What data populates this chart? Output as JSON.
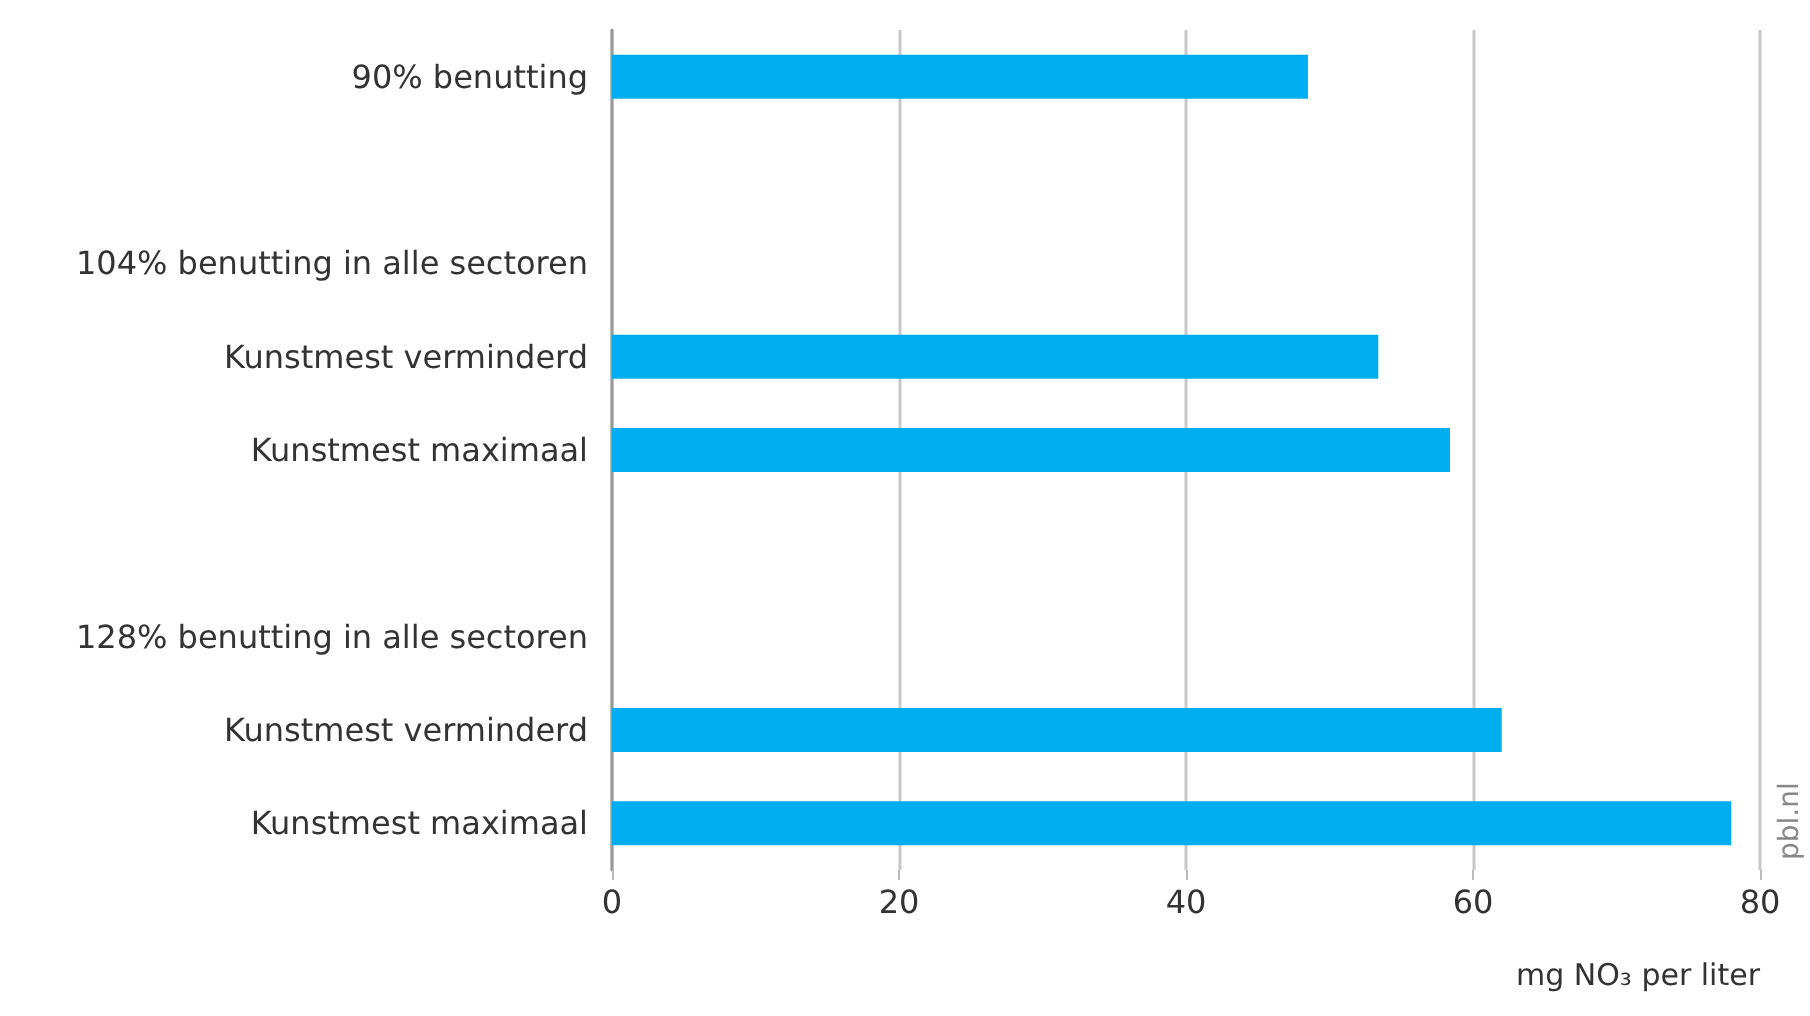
{
  "chart_data": {
    "type": "bar",
    "orientation": "horizontal",
    "categories": [
      "90% benutting",
      null,
      "104% benutting in alle sectoren",
      "Kunstmest verminderd",
      "Kunstmest maximaal",
      null,
      "128% benutting in alle sectoren",
      "Kunstmest verminderd",
      "Kunstmest maximaal"
    ],
    "values": [
      48.5,
      null,
      null,
      53.4,
      58.4,
      null,
      null,
      62.0,
      78.0
    ],
    "color": "#00aeef",
    "xlim": [
      0,
      80
    ],
    "xticks": [
      0,
      20,
      40,
      60,
      80
    ],
    "grid": "x",
    "xlabel": "mg NO₃ per liter",
    "annotations": [
      "pbl.nl"
    ]
  }
}
